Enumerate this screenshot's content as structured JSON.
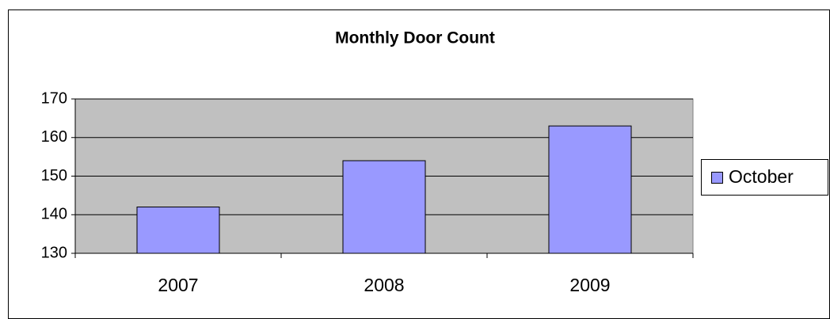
{
  "chart_data": {
    "type": "bar",
    "title": "Monthly Door Count",
    "categories": [
      "2007",
      "2008",
      "2009"
    ],
    "series": [
      {
        "name": "October",
        "color": "#9999ff",
        "values": [
          142,
          154,
          163
        ]
      }
    ],
    "ylim": [
      130,
      170
    ],
    "yticks": [
      130,
      140,
      150,
      160,
      170
    ],
    "grid": true,
    "legend": "right"
  }
}
